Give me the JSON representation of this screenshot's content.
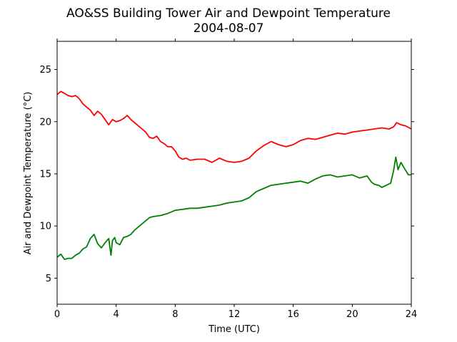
{
  "chart_data": {
    "type": "line",
    "title": "AO&SS Building Tower Air and Dewpoint Temperature",
    "subtitle": "2004-08-07",
    "xlabel": "Time (UTC)",
    "ylabel": "Air and Dewpoint Temperature (°C)",
    "xlim": [
      0,
      24
    ],
    "ylim": [
      2.5,
      27.7
    ],
    "xticks": [
      0,
      4,
      8,
      12,
      16,
      20,
      24
    ],
    "yticks": [
      5,
      10,
      15,
      20,
      25
    ],
    "grid": false,
    "series": [
      {
        "color": "#ff0000",
        "x": [
          0,
          0.25,
          0.5,
          0.75,
          1.0,
          1.25,
          1.5,
          1.75,
          2.0,
          2.25,
          2.5,
          2.75,
          3.0,
          3.25,
          3.5,
          3.75,
          4.0,
          4.25,
          4.5,
          4.75,
          5.0,
          5.25,
          5.5,
          5.75,
          6.0,
          6.25,
          6.5,
          6.75,
          7.0,
          7.25,
          7.5,
          7.75,
          8.0,
          8.25,
          8.5,
          8.75,
          9.0,
          9.5,
          10.0,
          10.5,
          11.0,
          11.5,
          12.0,
          12.5,
          13.0,
          13.5,
          14.0,
          14.5,
          15.0,
          15.5,
          16.0,
          16.5,
          17.0,
          17.5,
          18.0,
          18.5,
          19.0,
          19.5,
          20.0,
          20.5,
          21.0,
          21.5,
          22.0,
          22.5,
          22.8,
          23.0,
          23.3,
          23.6,
          24.0
        ],
        "y": [
          22.6,
          22.9,
          22.7,
          22.5,
          22.4,
          22.5,
          22.2,
          21.7,
          21.4,
          21.1,
          20.6,
          21.0,
          20.7,
          20.2,
          19.7,
          20.2,
          20.0,
          20.1,
          20.3,
          20.6,
          20.2,
          19.9,
          19.6,
          19.3,
          19.0,
          18.5,
          18.4,
          18.6,
          18.1,
          17.9,
          17.6,
          17.6,
          17.2,
          16.6,
          16.4,
          16.5,
          16.3,
          16.4,
          16.4,
          16.1,
          16.5,
          16.2,
          16.1,
          16.2,
          16.5,
          17.2,
          17.7,
          18.1,
          17.8,
          17.6,
          17.8,
          18.2,
          18.4,
          18.3,
          18.5,
          18.7,
          18.9,
          18.8,
          19.0,
          19.1,
          19.2,
          19.3,
          19.4,
          19.3,
          19.5,
          19.9,
          19.7,
          19.6,
          19.3
        ]
      },
      {
        "color": "#008000",
        "x": [
          0,
          0.25,
          0.5,
          0.75,
          1.0,
          1.25,
          1.5,
          1.75,
          2.0,
          2.25,
          2.5,
          2.75,
          3.0,
          3.25,
          3.5,
          3.65,
          3.75,
          3.9,
          4.0,
          4.25,
          4.5,
          4.75,
          5.0,
          5.25,
          5.5,
          5.75,
          6.0,
          6.25,
          6.5,
          7.0,
          7.5,
          8.0,
          8.5,
          9.0,
          9.5,
          10.0,
          10.5,
          11.0,
          11.5,
          12.0,
          12.5,
          13.0,
          13.5,
          14.0,
          14.5,
          15.0,
          15.5,
          16.0,
          16.5,
          17.0,
          17.5,
          18.0,
          18.5,
          19.0,
          19.5,
          20.0,
          20.5,
          21.0,
          21.3,
          21.5,
          21.8,
          22.0,
          22.3,
          22.6,
          22.8,
          22.95,
          23.1,
          23.3,
          23.5,
          23.8,
          24.0
        ],
        "y": [
          7.0,
          7.3,
          6.8,
          6.9,
          6.9,
          7.2,
          7.4,
          7.8,
          8.0,
          8.8,
          9.2,
          8.3,
          7.9,
          8.4,
          8.8,
          7.2,
          8.6,
          8.9,
          8.4,
          8.2,
          8.9,
          9.0,
          9.2,
          9.6,
          9.9,
          10.2,
          10.5,
          10.8,
          10.9,
          11.0,
          11.2,
          11.5,
          11.6,
          11.7,
          11.7,
          11.8,
          11.9,
          12.0,
          12.2,
          12.3,
          12.4,
          12.7,
          13.3,
          13.6,
          13.9,
          14.0,
          14.1,
          14.2,
          14.3,
          14.1,
          14.5,
          14.8,
          14.9,
          14.7,
          14.8,
          14.9,
          14.6,
          14.8,
          14.2,
          14.0,
          13.9,
          13.7,
          13.9,
          14.1,
          15.3,
          16.6,
          15.4,
          16.1,
          15.6,
          14.9,
          14.9
        ]
      }
    ]
  }
}
